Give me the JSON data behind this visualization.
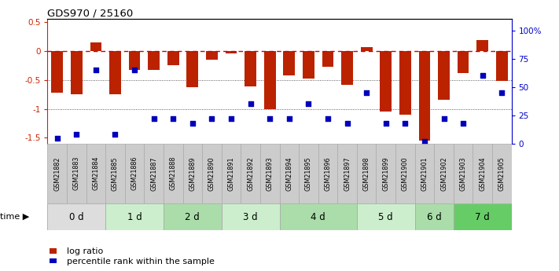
{
  "title": "GDS970 / 25160",
  "samples": [
    "GSM21882",
    "GSM21883",
    "GSM21884",
    "GSM21885",
    "GSM21886",
    "GSM21887",
    "GSM21888",
    "GSM21889",
    "GSM21890",
    "GSM21891",
    "GSM21892",
    "GSM21893",
    "GSM21894",
    "GSM21895",
    "GSM21896",
    "GSM21897",
    "GSM21898",
    "GSM21899",
    "GSM21900",
    "GSM21901",
    "GSM21902",
    "GSM21903",
    "GSM21904",
    "GSM21905"
  ],
  "log_ratio": [
    -0.72,
    -0.75,
    0.15,
    -0.75,
    -0.33,
    -0.33,
    -0.25,
    -0.62,
    -0.15,
    -0.05,
    -0.61,
    -1.0,
    -0.42,
    -0.48,
    -0.27,
    -0.58,
    0.07,
    -1.05,
    -1.1,
    -1.55,
    -0.85,
    -0.38,
    0.18,
    -0.52
  ],
  "percentile": [
    5,
    8,
    65,
    8,
    65,
    22,
    22,
    18,
    22,
    22,
    35,
    22,
    22,
    35,
    22,
    18,
    45,
    18,
    18,
    2,
    22,
    18,
    60,
    45
  ],
  "time_groups": [
    {
      "label": "0 d",
      "start": 0,
      "end": 3,
      "color": "#dddddd"
    },
    {
      "label": "1 d",
      "start": 3,
      "end": 6,
      "color": "#cceecc"
    },
    {
      "label": "2 d",
      "start": 6,
      "end": 9,
      "color": "#aaddaa"
    },
    {
      "label": "3 d",
      "start": 9,
      "end": 12,
      "color": "#cceecc"
    },
    {
      "label": "4 d",
      "start": 12,
      "end": 16,
      "color": "#aaddaa"
    },
    {
      "label": "5 d",
      "start": 16,
      "end": 19,
      "color": "#cceecc"
    },
    {
      "label": "6 d",
      "start": 19,
      "end": 21,
      "color": "#aaddaa"
    },
    {
      "label": "7 d",
      "start": 21,
      "end": 24,
      "color": "#66cc66"
    }
  ],
  "ylim_left": [
    -1.6,
    0.55
  ],
  "ylim_right": [
    0,
    110
  ],
  "yticks_left": [
    0.5,
    0.0,
    -0.5,
    -1.0,
    -1.5
  ],
  "ytick_labels_left": [
    "0.5",
    "0",
    "-0.5",
    "-1",
    "-1.5"
  ],
  "yticks_right": [
    0,
    25,
    50,
    75,
    100
  ],
  "ytick_labels_right": [
    "0",
    "25",
    "50",
    "75",
    "100%"
  ],
  "bar_color": "#bb2200",
  "dot_color": "#0000bb",
  "hline_color": "#cc0000",
  "dotted_line_color": "#333333",
  "bg_color": "#ffffff",
  "ylabel_left_color": "#cc2200",
  "ylabel_right_color": "#0000cc",
  "sample_bg_color": "#cccccc",
  "sample_border_color": "#aaaaaa"
}
